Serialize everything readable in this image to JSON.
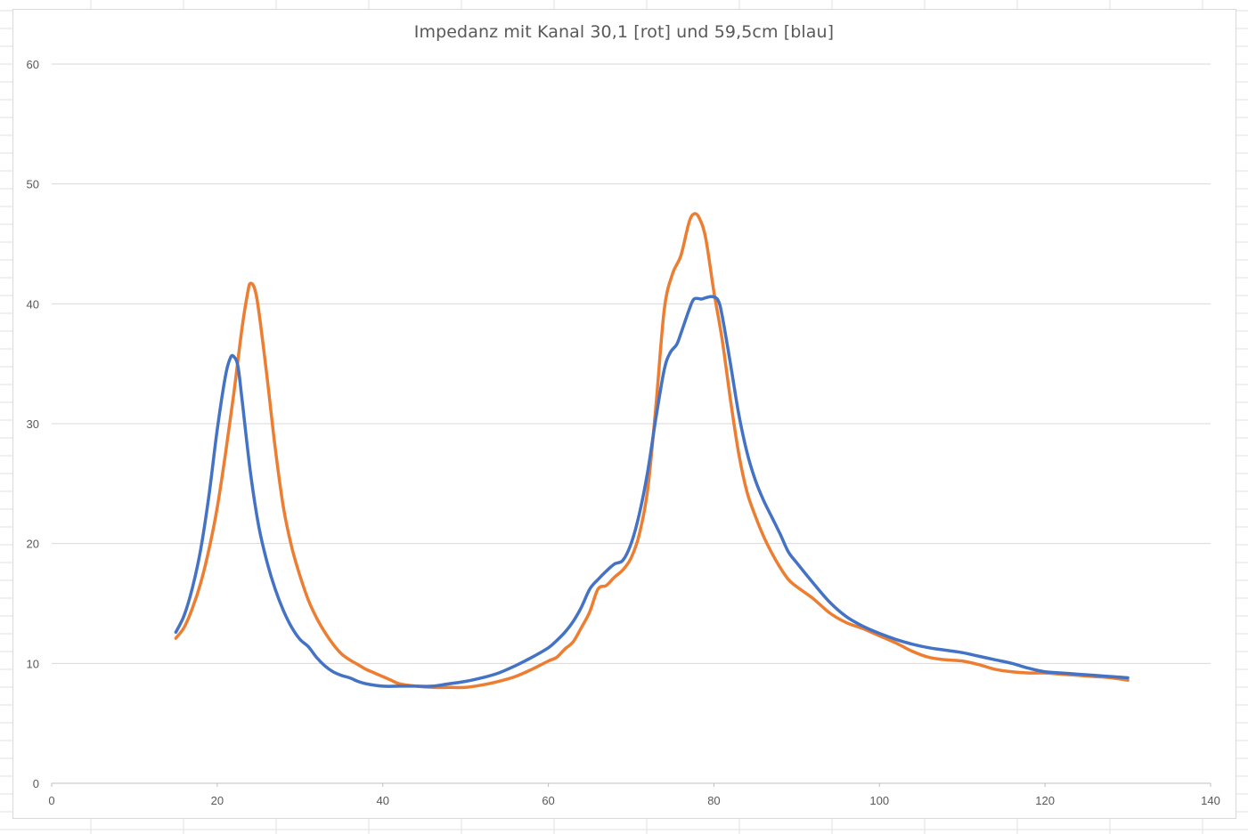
{
  "chart_data": {
    "type": "line",
    "title": "Impedanz mit Kanal 30,1 [rot] und 59,5cm [blau]",
    "xlabel": "",
    "ylabel": "",
    "xlim": [
      0,
      140
    ],
    "ylim": [
      0,
      60
    ],
    "x_ticks": [
      0,
      20,
      40,
      60,
      80,
      100,
      120,
      140
    ],
    "y_ticks": [
      0,
      10,
      20,
      30,
      40,
      50,
      60
    ],
    "grid": "horizontal",
    "legend": "none",
    "series": [
      {
        "color": "#ED7D31",
        "points": [
          [
            15,
            12.1
          ],
          [
            16,
            13.0
          ],
          [
            17,
            14.6
          ],
          [
            18,
            16.7
          ],
          [
            19,
            19.5
          ],
          [
            20,
            23.0
          ],
          [
            21,
            27.5
          ],
          [
            22,
            32.5
          ],
          [
            23,
            38.0
          ],
          [
            23.7,
            41.0
          ],
          [
            24,
            41.7
          ],
          [
            24.5,
            41.3
          ],
          [
            25,
            39.5
          ],
          [
            26,
            34.0
          ],
          [
            27,
            28.0
          ],
          [
            28,
            23.0
          ],
          [
            29,
            19.7
          ],
          [
            30,
            17.3
          ],
          [
            31,
            15.3
          ],
          [
            32,
            13.8
          ],
          [
            33,
            12.6
          ],
          [
            34,
            11.6
          ],
          [
            35,
            10.8
          ],
          [
            36,
            10.3
          ],
          [
            37,
            9.9
          ],
          [
            38,
            9.5
          ],
          [
            39,
            9.2
          ],
          [
            40,
            8.9
          ],
          [
            41,
            8.6
          ],
          [
            42,
            8.3
          ],
          [
            44,
            8.1
          ],
          [
            46,
            8.0
          ],
          [
            48,
            8.0
          ],
          [
            50,
            8.0
          ],
          [
            52,
            8.2
          ],
          [
            54,
            8.5
          ],
          [
            56,
            8.9
          ],
          [
            58,
            9.5
          ],
          [
            60,
            10.2
          ],
          [
            61,
            10.5
          ],
          [
            62,
            11.2
          ],
          [
            63,
            11.8
          ],
          [
            64,
            13.0
          ],
          [
            65,
            14.3
          ],
          [
            66,
            16.2
          ],
          [
            67,
            16.5
          ],
          [
            68,
            17.2
          ],
          [
            69,
            17.8
          ],
          [
            70,
            18.8
          ],
          [
            71,
            20.8
          ],
          [
            72,
            24.5
          ],
          [
            73,
            31.5
          ],
          [
            74,
            39.5
          ],
          [
            75,
            42.5
          ],
          [
            76,
            44.0
          ],
          [
            77,
            46.8
          ],
          [
            77.6,
            47.5
          ],
          [
            78.2,
            47.2
          ],
          [
            79,
            45.5
          ],
          [
            80,
            41.0
          ],
          [
            81,
            37.0
          ],
          [
            82,
            32.0
          ],
          [
            83,
            27.5
          ],
          [
            84,
            24.3
          ],
          [
            85,
            22.3
          ],
          [
            86,
            20.6
          ],
          [
            87,
            19.2
          ],
          [
            88,
            18.0
          ],
          [
            89,
            17.0
          ],
          [
            90,
            16.4
          ],
          [
            92,
            15.4
          ],
          [
            94,
            14.2
          ],
          [
            96,
            13.4
          ],
          [
            98,
            12.9
          ],
          [
            100,
            12.3
          ],
          [
            102,
            11.7
          ],
          [
            104,
            11.0
          ],
          [
            106,
            10.5
          ],
          [
            108,
            10.3
          ],
          [
            110,
            10.2
          ],
          [
            112,
            9.9
          ],
          [
            114,
            9.5
          ],
          [
            116,
            9.3
          ],
          [
            118,
            9.2
          ],
          [
            120,
            9.2
          ],
          [
            122,
            9.1
          ],
          [
            124,
            9.0
          ],
          [
            126,
            8.9
          ],
          [
            128,
            8.8
          ],
          [
            130,
            8.6
          ]
        ]
      },
      {
        "color": "#4472C4",
        "points": [
          [
            15,
            12.6
          ],
          [
            16,
            14.0
          ],
          [
            17,
            16.3
          ],
          [
            18,
            19.5
          ],
          [
            19,
            24.0
          ],
          [
            20,
            29.5
          ],
          [
            21,
            34.0
          ],
          [
            21.6,
            35.5
          ],
          [
            22,
            35.6
          ],
          [
            22.5,
            34.8
          ],
          [
            23,
            32.0
          ],
          [
            24,
            26.0
          ],
          [
            25,
            21.5
          ],
          [
            26,
            18.5
          ],
          [
            27,
            16.2
          ],
          [
            28,
            14.4
          ],
          [
            29,
            13.0
          ],
          [
            30,
            12.0
          ],
          [
            31,
            11.4
          ],
          [
            32,
            10.5
          ],
          [
            33,
            9.8
          ],
          [
            34,
            9.3
          ],
          [
            35,
            9.0
          ],
          [
            36,
            8.8
          ],
          [
            37,
            8.5
          ],
          [
            38,
            8.3
          ],
          [
            40,
            8.1
          ],
          [
            42,
            8.1
          ],
          [
            44,
            8.1
          ],
          [
            46,
            8.1
          ],
          [
            48,
            8.3
          ],
          [
            50,
            8.5
          ],
          [
            52,
            8.8
          ],
          [
            54,
            9.2
          ],
          [
            56,
            9.8
          ],
          [
            58,
            10.5
          ],
          [
            60,
            11.3
          ],
          [
            61,
            11.9
          ],
          [
            62,
            12.6
          ],
          [
            63,
            13.5
          ],
          [
            64,
            14.7
          ],
          [
            65,
            16.2
          ],
          [
            66,
            17.0
          ],
          [
            67,
            17.7
          ],
          [
            68,
            18.3
          ],
          [
            69,
            18.6
          ],
          [
            70,
            20.0
          ],
          [
            71,
            22.5
          ],
          [
            72,
            26.0
          ],
          [
            73,
            30.5
          ],
          [
            74,
            34.5
          ],
          [
            74.7,
            35.9
          ],
          [
            75.5,
            36.6
          ],
          [
            76,
            37.5
          ],
          [
            77,
            39.5
          ],
          [
            77.6,
            40.4
          ],
          [
            78.5,
            40.4
          ],
          [
            79,
            40.5
          ],
          [
            79.8,
            40.6
          ],
          [
            80.5,
            40.3
          ],
          [
            81,
            39.0
          ],
          [
            82,
            35.0
          ],
          [
            83,
            30.8
          ],
          [
            84,
            27.6
          ],
          [
            85,
            25.3
          ],
          [
            86,
            23.6
          ],
          [
            87,
            22.2
          ],
          [
            88,
            20.8
          ],
          [
            89,
            19.3
          ],
          [
            90,
            18.4
          ],
          [
            92,
            16.7
          ],
          [
            94,
            15.1
          ],
          [
            96,
            13.9
          ],
          [
            98,
            13.1
          ],
          [
            100,
            12.5
          ],
          [
            102,
            12.0
          ],
          [
            104,
            11.6
          ],
          [
            106,
            11.3
          ],
          [
            108,
            11.1
          ],
          [
            110,
            10.9
          ],
          [
            112,
            10.6
          ],
          [
            114,
            10.3
          ],
          [
            116,
            10.0
          ],
          [
            118,
            9.6
          ],
          [
            120,
            9.3
          ],
          [
            122,
            9.2
          ],
          [
            124,
            9.1
          ],
          [
            126,
            9.0
          ],
          [
            128,
            8.9
          ],
          [
            130,
            8.8
          ]
        ]
      }
    ]
  }
}
